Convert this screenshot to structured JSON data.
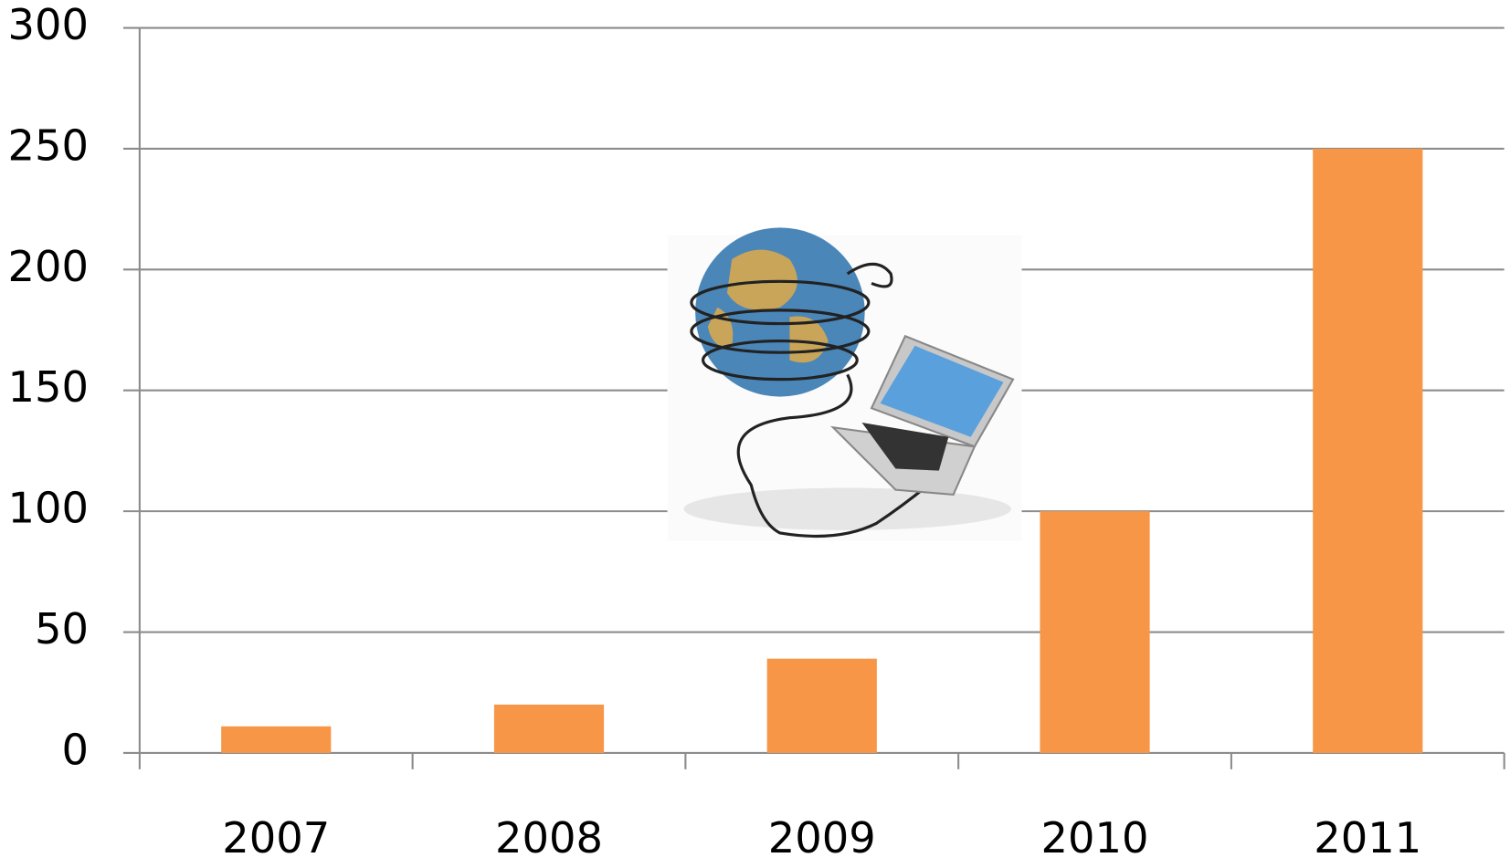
{
  "chart_data": {
    "type": "bar",
    "categories": [
      "2007",
      "2008",
      "2009",
      "2010",
      "2011"
    ],
    "values": [
      11,
      20,
      39,
      100,
      250
    ],
    "color": "#f79646",
    "ylim": [
      0,
      300
    ],
    "yticks": [
      0,
      50,
      100,
      150,
      200,
      250,
      300
    ],
    "grid": true
  }
}
